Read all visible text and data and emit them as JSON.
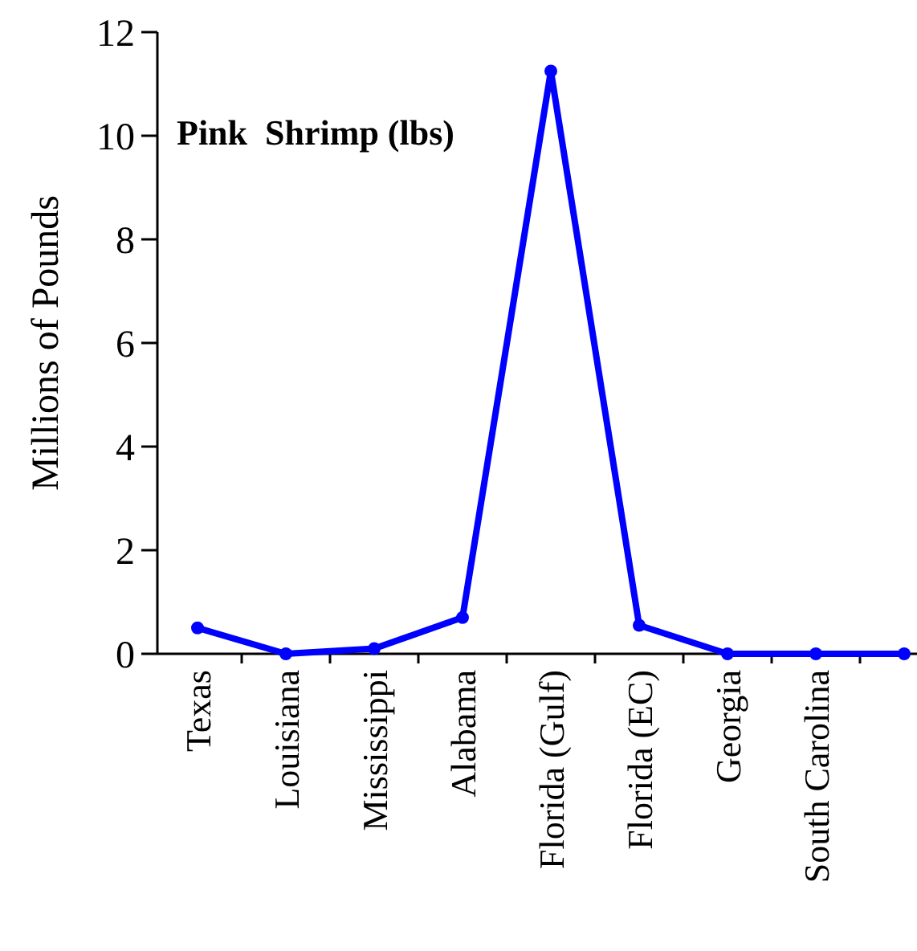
{
  "chart_data": {
    "type": "line",
    "title": "Pink  Shrimp (lbs)",
    "ylabel": "Millions of Pounds",
    "categories": [
      "Texas",
      "Louisiana",
      "Mississippi",
      "Alabama",
      "Florida (Gulf)",
      "Florida (EC)",
      "Georgia",
      "South Carolina",
      null
    ],
    "series": [
      {
        "color": "#0000ff",
        "values": [
          0.5,
          0,
          0.1,
          0.7,
          11.25,
          0.55,
          0,
          0,
          0
        ]
      }
    ],
    "ylim": [
      0,
      12
    ],
    "yticks": [
      0,
      2,
      4,
      6,
      8,
      10,
      12
    ],
    "marker": "circle",
    "line_style": "solid",
    "grid": false
  }
}
